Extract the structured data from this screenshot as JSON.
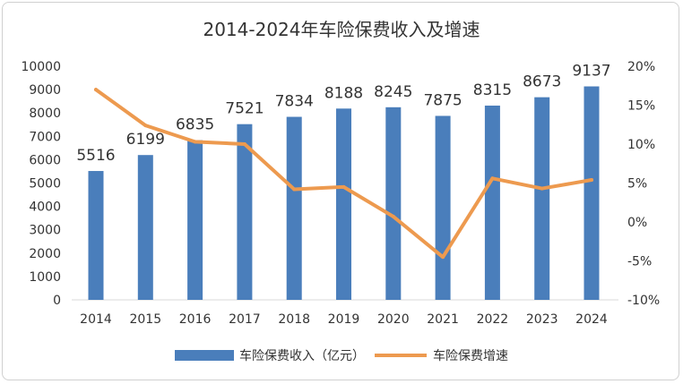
{
  "chart_data": {
    "type": "bar+line",
    "title": "2014-2024年车险保费收入及增速",
    "categories": [
      "2014",
      "2015",
      "2016",
      "2017",
      "2018",
      "2019",
      "2020",
      "2021",
      "2022",
      "2023",
      "2024"
    ],
    "series": [
      {
        "name": "车险保费收入（亿元）",
        "type": "bar",
        "axis": "left",
        "color": "#4a7ebb",
        "values": [
          5516,
          6199,
          6835,
          7521,
          7834,
          8188,
          8245,
          7875,
          8315,
          8673,
          9137
        ],
        "labels": [
          "5516",
          "6199",
          "6835",
          "7521",
          "7834",
          "8188",
          "8245",
          "7875",
          "8315",
          "8673",
          "9137"
        ]
      },
      {
        "name": "车险保费增速",
        "type": "line",
        "axis": "right",
        "color": "#ed9a4f",
        "values": [
          17.0,
          12.4,
          10.3,
          10.0,
          4.2,
          4.5,
          0.7,
          -4.5,
          5.6,
          4.3,
          5.4
        ]
      }
    ],
    "y_left": {
      "range": [
        0,
        10000
      ],
      "ticks": [
        "0",
        "1000",
        "2000",
        "3000",
        "4000",
        "5000",
        "6000",
        "7000",
        "8000",
        "9000",
        "10000"
      ]
    },
    "y_right": {
      "range": [
        -10,
        20
      ],
      "ticks": [
        "-10%",
        "-5%",
        "0%",
        "5%",
        "10%",
        "15%",
        "20%"
      ]
    },
    "grid": false,
    "legend": "bottom"
  }
}
